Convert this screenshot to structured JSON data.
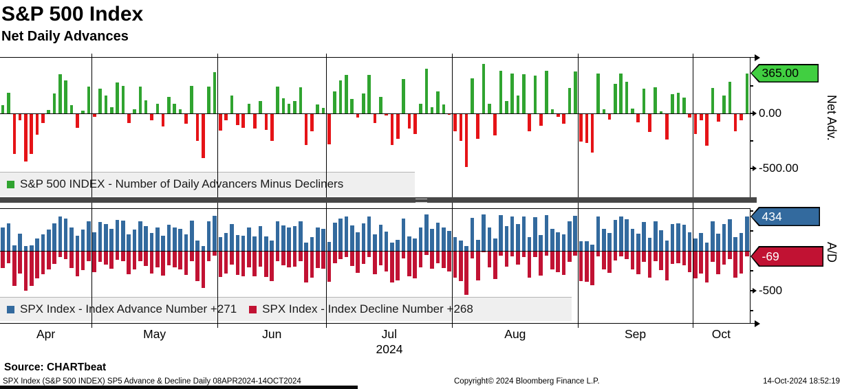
{
  "header": {
    "title": "S&P 500 Index",
    "subtitle": "Net Daily Advances"
  },
  "colors": {
    "advance_green": "#30a430",
    "decline_red": "#e51317",
    "ad_blue": "#336a9e",
    "ad_crimson": "#c11233",
    "tag_green": "#41cf41",
    "tag_blue": "#336a9e",
    "tag_red": "#c11233",
    "legend_bg": "#efefef",
    "separator": "#474747"
  },
  "top_panel": {
    "legend": {
      "swatch_color": "#30a430",
      "label": "S&P 500 INDEX - Number of Daily Advancers Minus Decliners"
    },
    "axis": {
      "label": "Net Adv.",
      "last_tag": "365.00",
      "ticks": [
        {
          "label": "0.00",
          "value": 0
        },
        {
          "label": "-500.00",
          "value": -500
        }
      ],
      "minor_tick_values": [
        250,
        -250
      ]
    }
  },
  "bottom_panel": {
    "legend": [
      {
        "swatch_color": "#336a9e",
        "label": "SPX Index - Index Advance Number +271"
      },
      {
        "swatch_color": "#c11233",
        "label": "SPX Index - Index Decline Number +268"
      }
    ],
    "axis": {
      "label": "A/D",
      "tags": [
        {
          "label": "434",
          "value": 434,
          "color": "#336a9e",
          "text": "#fff"
        },
        {
          "label": "-69",
          "value": -69,
          "color": "#c11233",
          "text": "#fff"
        }
      ],
      "ticks": [
        {
          "label": "-500",
          "value": -500
        }
      ],
      "minor_tick_values": [
        500,
        250,
        -250,
        -750
      ]
    }
  },
  "x_axis": {
    "months": [
      {
        "label": "Apr",
        "days": 16
      },
      {
        "label": "May",
        "days": 22
      },
      {
        "label": "Jun",
        "days": 19
      },
      {
        "label": "Jul",
        "days": 22
      },
      {
        "label": "Aug",
        "days": 22
      },
      {
        "label": "Sep",
        "days": 20
      },
      {
        "label": "Oct",
        "days": 10
      }
    ],
    "year_label": "2024",
    "year_under_month": "Jul"
  },
  "footer": {
    "source": "Source: CHARTbeat",
    "left": "SPX Index (S&P 500 INDEX) SP5 Advance & Decline  Daily 08APR2024-14OCT2024",
    "copyright": "Copyright© 2024 Bloomberg Finance L.P.",
    "timestamp": "14-Oct-2024 18:52:19"
  },
  "chart_data": [
    {
      "type": "bar",
      "title": "S&P 500 INDEX - Number of Daily Advancers Minus Decliners",
      "xlabel": "Daily 08APR2024-14OCT2024",
      "ylabel": "Net Adv.",
      "ylim": [
        -760,
        510
      ],
      "tick_values": [
        0,
        -500
      ],
      "last_value": 365,
      "positive_color": "#30a430",
      "negative_color": "#e51317",
      "grid": "vertical-month-lines",
      "legend_position": "bottom-left",
      "values": [
        75,
        185,
        -370,
        -65,
        -440,
        -370,
        -195,
        -90,
        30,
        180,
        355,
        300,
        75,
        -130,
        25,
        245,
        -30,
        225,
        160,
        55,
        280,
        250,
        -85,
        35,
        245,
        120,
        -60,
        90,
        -120,
        150,
        85,
        40,
        -95,
        250,
        -250,
        -405,
        245,
        378,
        -155,
        -60,
        162,
        -105,
        -130,
        90,
        -140,
        115,
        -150,
        -250,
        245,
        135,
        90,
        110,
        240,
        -290,
        -160,
        80,
        50,
        -280,
        200,
        300,
        350,
        130,
        -40,
        180,
        350,
        -90,
        150,
        -20,
        -290,
        -230,
        310,
        -140,
        -185,
        90,
        407,
        55,
        200,
        80,
        -10,
        -160,
        -250,
        -488,
        320,
        -230,
        447,
        90,
        -200,
        385,
        115,
        360,
        160,
        355,
        -160,
        345,
        -110,
        385,
        40,
        -30,
        -95,
        230,
        380,
        -255,
        -270,
        -355,
        360,
        40,
        -55,
        270,
        365,
        290,
        45,
        -80,
        225,
        -170,
        240,
        20,
        -240,
        175,
        190,
        145,
        -35,
        -190,
        -60,
        -293,
        230,
        -75,
        160,
        290,
        -160,
        -60,
        365
      ]
    },
    {
      "type": "bar",
      "title": "SPX Index Advance / Decline",
      "ylabel": "A/D",
      "ylim": [
        -870,
        535
      ],
      "tick_values": [
        0,
        -500
      ],
      "last_values": {
        "advances": 434,
        "declines": -69
      },
      "grid": "vertical-month-lines",
      "legend_position": "bottom-left",
      "series": [
        {
          "name": "Index Advance Number",
          "color": "#336a9e",
          "values": [
            289,
            344,
            67,
            219,
            60,
            67,
            154,
            207,
            267,
            342,
            429,
            402,
            289,
            187,
            264,
            374,
            237,
            364,
            332,
            279,
            392,
            377,
            209,
            269,
            374,
            312,
            222,
            297,
            192,
            327,
            294,
            272,
            204,
            377,
            127,
            60,
            374,
            441,
            174,
            222,
            333,
            199,
            187,
            297,
            182,
            309,
            177,
            127,
            374,
            319,
            297,
            307,
            372,
            107,
            172,
            292,
            277,
            112,
            352,
            402,
            427,
            317,
            232,
            342,
            427,
            207,
            327,
            242,
            107,
            137,
            407,
            182,
            159,
            297,
            455,
            279,
            352,
            292,
            247,
            172,
            127,
            60,
            412,
            137,
            460,
            297,
            152,
            444,
            309,
            432,
            332,
            429,
            172,
            424,
            197,
            444,
            272,
            237,
            204,
            367,
            442,
            124,
            117,
            74,
            432,
            272,
            224,
            387,
            434,
            397,
            274,
            212,
            364,
            167,
            372,
            262,
            132,
            339,
            347,
            324,
            234,
            157,
            222,
            105,
            367,
            214,
            332,
            397,
            172,
            222,
            434
          ]
        },
        {
          "name": "Index Decline Number",
          "color": "#c11233",
          "values": [
            -214,
            -159,
            -437,
            -284,
            -500,
            -437,
            -349,
            -297,
            -237,
            -162,
            -74,
            -102,
            -214,
            -317,
            -239,
            -129,
            -267,
            -139,
            -172,
            -224,
            -112,
            -127,
            -294,
            -234,
            -129,
            -192,
            -282,
            -207,
            -312,
            -177,
            -209,
            -232,
            -299,
            -127,
            -377,
            -465,
            -129,
            -63,
            -329,
            -282,
            -171,
            -304,
            -317,
            -207,
            -322,
            -194,
            -327,
            -377,
            -129,
            -184,
            -207,
            -197,
            -132,
            -397,
            -332,
            -212,
            -227,
            -392,
            -152,
            -102,
            -77,
            -187,
            -272,
            -162,
            -77,
            -297,
            -177,
            -262,
            -397,
            -367,
            -97,
            -322,
            -344,
            -207,
            -48,
            -224,
            -152,
            -212,
            -257,
            -332,
            -377,
            -548,
            -92,
            -367,
            -13,
            -207,
            -352,
            -59,
            -194,
            -72,
            -172,
            -74,
            -332,
            -79,
            -307,
            -59,
            -232,
            -267,
            -299,
            -137,
            -62,
            -379,
            -387,
            -429,
            -72,
            -232,
            -279,
            -117,
            -69,
            -107,
            -229,
            -292,
            -139,
            -337,
            -132,
            -242,
            -372,
            -164,
            -157,
            -179,
            -269,
            -347,
            -282,
            -398,
            -137,
            -289,
            -172,
            -107,
            -332,
            -282,
            -69
          ]
        }
      ]
    }
  ]
}
